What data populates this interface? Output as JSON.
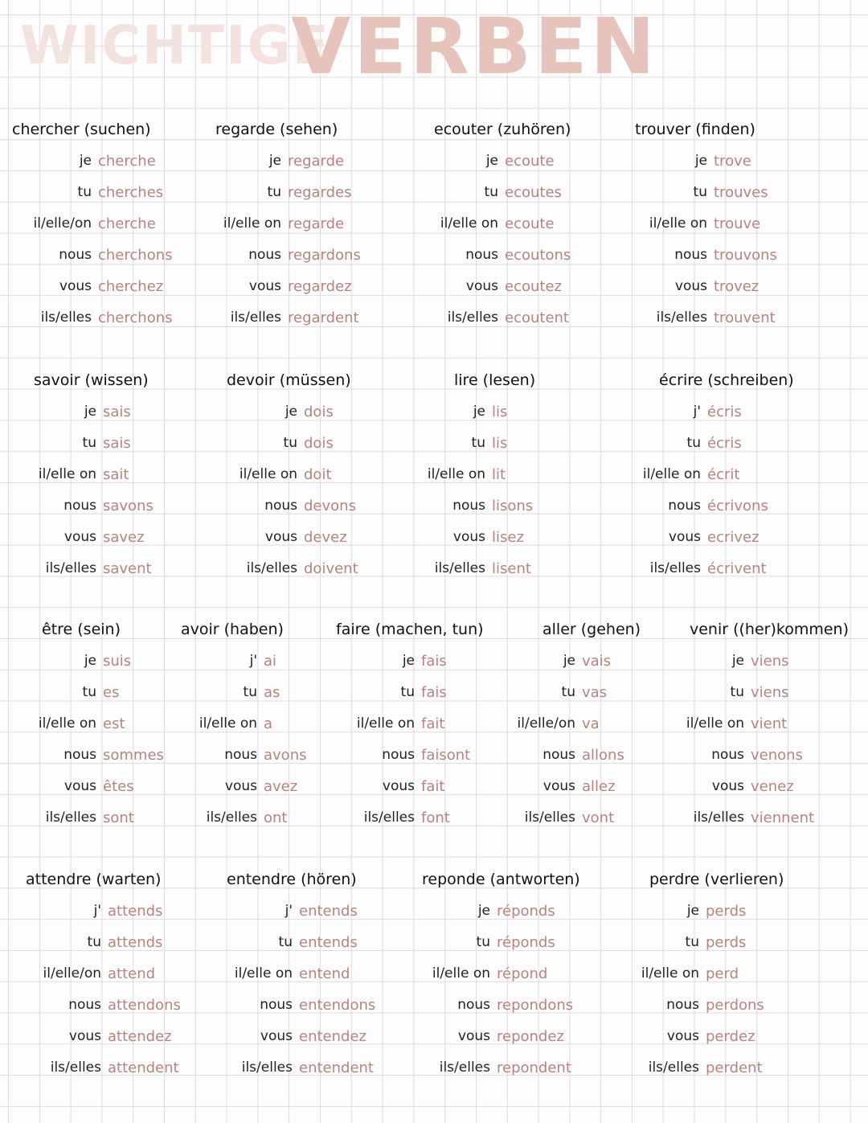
{
  "header": {
    "title": [
      "WICHTIGE",
      "VERBEN"
    ]
  },
  "rows": [
    [
      {
        "heading": "chercher (suchen)",
        "forms": [
          [
            "je",
            "cherche"
          ],
          [
            "tu",
            "cherches"
          ],
          [
            "il/elle/on",
            "cherche"
          ],
          [
            "nous",
            "cherchons"
          ],
          [
            "vous",
            "cherchez"
          ],
          [
            "ils/elles",
            "cherchons"
          ]
        ]
      },
      {
        "heading": "regarde (sehen)",
        "forms": [
          [
            "je",
            "regarde"
          ],
          [
            "tu",
            "regardes"
          ],
          [
            "il/elle on",
            "regarde"
          ],
          [
            "nous",
            "regardons"
          ],
          [
            "vous",
            "regardez"
          ],
          [
            "ils/elles",
            "regardent"
          ]
        ]
      },
      {
        "heading": "ecouter (zuhören)",
        "forms": [
          [
            "je",
            "ecoute"
          ],
          [
            "tu",
            "ecoutes"
          ],
          [
            "il/elle on",
            "ecoute"
          ],
          [
            "nous",
            "ecoutons"
          ],
          [
            "vous",
            "ecoutez"
          ],
          [
            "ils/elles",
            "ecoutent"
          ]
        ]
      },
      {
        "heading": "trouver (finden)",
        "forms": [
          [
            "je",
            "trove"
          ],
          [
            "tu",
            "trouves"
          ],
          [
            "il/elle on",
            "trouve"
          ],
          [
            "nous",
            "trouvons"
          ],
          [
            "vous",
            "trovez"
          ],
          [
            "ils/elles",
            "trouvent"
          ]
        ]
      }
    ],
    [
      {
        "heading": "savoir (wissen)",
        "forms": [
          [
            "je",
            "sais"
          ],
          [
            "tu",
            "sais"
          ],
          [
            "il/elle on",
            "sait"
          ],
          [
            "nous",
            "savons"
          ],
          [
            "vous",
            "savez"
          ],
          [
            "ils/elles",
            "savent"
          ]
        ]
      },
      {
        "heading": "devoir (müssen)",
        "forms": [
          [
            "je",
            "dois"
          ],
          [
            "tu",
            "dois"
          ],
          [
            "il/elle on",
            "doit"
          ],
          [
            "nous",
            "devons"
          ],
          [
            "vous",
            "devez"
          ],
          [
            "ils/elles",
            "doivent"
          ]
        ]
      },
      {
        "heading": "lire (lesen)",
        "forms": [
          [
            "je",
            "lis"
          ],
          [
            "tu",
            "lis"
          ],
          [
            "il/elle on",
            "lit"
          ],
          [
            "nous",
            "lisons"
          ],
          [
            "vous",
            "lisez"
          ],
          [
            "ils/elles",
            "lisent"
          ]
        ]
      },
      {
        "heading": "écrire (schreiben)",
        "forms": [
          [
            "j'",
            "écris"
          ],
          [
            "tu",
            "écris"
          ],
          [
            "il/elle on",
            "écrit"
          ],
          [
            "nous",
            "écrivons"
          ],
          [
            "vous",
            "ecrivez"
          ],
          [
            "ils/elles",
            "écrivent"
          ]
        ]
      }
    ],
    [
      {
        "heading": "être (sein)",
        "forms": [
          [
            "je",
            "suis"
          ],
          [
            "tu",
            "es"
          ],
          [
            "il/elle on",
            "est"
          ],
          [
            "nous",
            "sommes"
          ],
          [
            "vous",
            "êtes"
          ],
          [
            "ils/elles",
            "sont"
          ]
        ]
      },
      {
        "heading": "avoir (haben)",
        "forms": [
          [
            "j'",
            "ai"
          ],
          [
            "tu",
            "as"
          ],
          [
            "il/elle on",
            "a"
          ],
          [
            "nous",
            "avons"
          ],
          [
            "vous",
            "avez"
          ],
          [
            "ils/elles",
            "ont"
          ]
        ]
      },
      {
        "heading": "faire (machen, tun)",
        "forms": [
          [
            "je",
            "fais"
          ],
          [
            "tu",
            "fais"
          ],
          [
            "il/elle on",
            "fait"
          ],
          [
            "nous",
            "faisont"
          ],
          [
            "vous",
            "fait"
          ],
          [
            "ils/elles",
            "font"
          ]
        ]
      },
      {
        "heading": "aller (gehen)",
        "forms": [
          [
            "je",
            "vais"
          ],
          [
            "tu",
            "vas"
          ],
          [
            "il/elle/on",
            "va"
          ],
          [
            "nous",
            "allons"
          ],
          [
            "vous",
            "allez"
          ],
          [
            "ils/elles",
            "vont"
          ]
        ]
      },
      {
        "heading": "venir ((her)kommen)",
        "forms": [
          [
            "je",
            "viens"
          ],
          [
            "tu",
            "viens"
          ],
          [
            "il/elle on",
            "vient"
          ],
          [
            "nous",
            "venons"
          ],
          [
            "vous",
            "venez"
          ],
          [
            "ils/elles",
            "viennent"
          ]
        ]
      }
    ],
    [
      {
        "heading": "attendre (warten)",
        "forms": [
          [
            "j'",
            "attends"
          ],
          [
            "tu",
            "attends"
          ],
          [
            "il/elle/on",
            "attend"
          ],
          [
            "nous",
            "attendons"
          ],
          [
            "vous",
            "attendez"
          ],
          [
            "ils/elles",
            "attendent"
          ]
        ]
      },
      {
        "heading": "entendre (hören)",
        "forms": [
          [
            "j'",
            "entends"
          ],
          [
            "tu",
            "entends"
          ],
          [
            "il/elle on",
            "entend"
          ],
          [
            "nous",
            "entendons"
          ],
          [
            "vous",
            "entendez"
          ],
          [
            "ils/elles",
            "entendent"
          ]
        ]
      },
      {
        "heading": "reponde (antworten)",
        "forms": [
          [
            "je",
            "réponds"
          ],
          [
            "tu",
            "réponds"
          ],
          [
            "il/elle on",
            "répond"
          ],
          [
            "nous",
            "repondons"
          ],
          [
            "vous",
            "repondez"
          ],
          [
            "ils/elles",
            "repondent"
          ]
        ]
      },
      {
        "heading": "perdre (verlieren)",
        "forms": [
          [
            "je",
            "perds"
          ],
          [
            "tu",
            "perds"
          ],
          [
            "il/elle on",
            "perd"
          ],
          [
            "nous",
            "perdons"
          ],
          [
            "vous",
            "perdez"
          ],
          [
            "ils/elles",
            "perdent"
          ]
        ]
      }
    ]
  ]
}
